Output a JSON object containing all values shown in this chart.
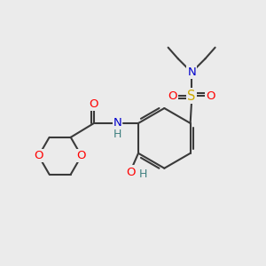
{
  "bg_color": "#ebebeb",
  "bond_color": "#3a3a3a",
  "bond_width": 1.5,
  "atom_colors": {
    "O": "#ff0000",
    "N": "#0000cc",
    "S": "#ccaa00",
    "C": "#3a3a3a",
    "H": "#408080"
  },
  "font_size": 9.5
}
